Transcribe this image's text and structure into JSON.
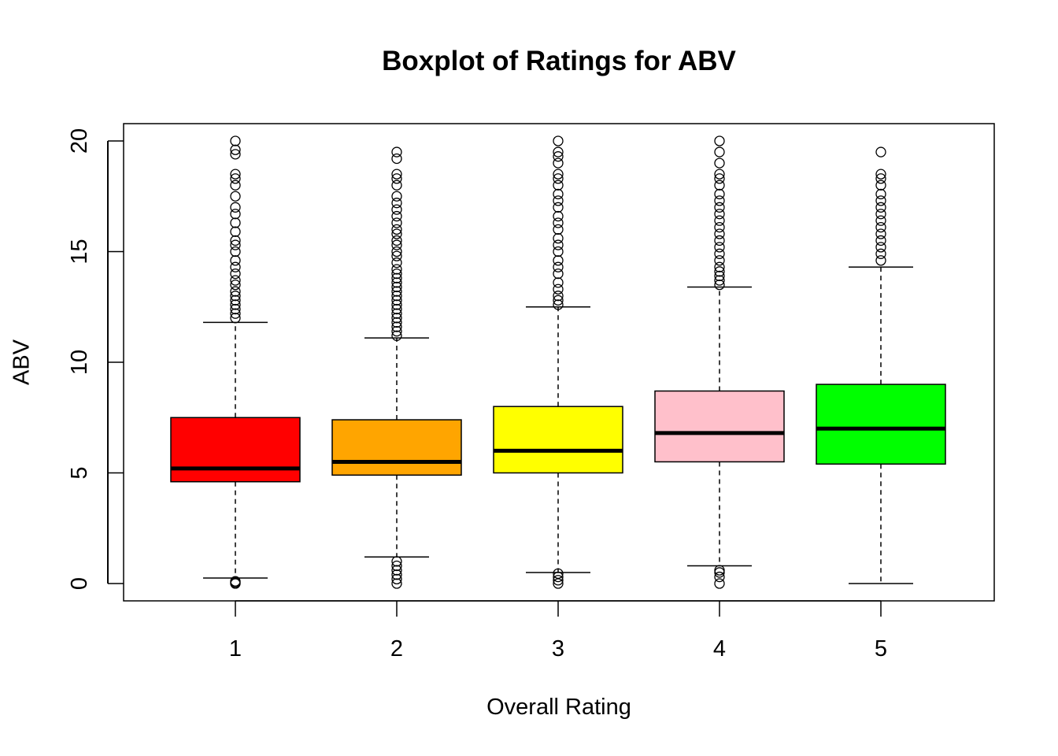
{
  "chart_data": {
    "type": "boxplot",
    "title": "Boxplot of Ratings for ABV",
    "xlabel": "Overall Rating",
    "ylabel": "ABV",
    "ylim": [
      -0.8,
      20.8
    ],
    "y_ticks": [
      0,
      5,
      10,
      15,
      20
    ],
    "categories": [
      "1",
      "2",
      "3",
      "4",
      "5"
    ],
    "grid": false,
    "boxes": [
      {
        "category": "1",
        "color": "#FF0000",
        "whisker_low": 0.25,
        "q1": 4.6,
        "median": 5.2,
        "q3": 7.5,
        "whisker_high": 11.8,
        "outliers": [
          0.0,
          0.05,
          0.1,
          12.0,
          12.2,
          12.4,
          12.6,
          12.8,
          13.0,
          13.2,
          13.5,
          13.7,
          14.0,
          14.3,
          14.6,
          15.0,
          15.3,
          15.5,
          15.9,
          16.3,
          16.7,
          17.0,
          17.5,
          18.0,
          18.3,
          18.5,
          19.4,
          19.6,
          20.0
        ]
      },
      {
        "category": "2",
        "color": "#FFA500",
        "whisker_low": 1.2,
        "q1": 4.9,
        "median": 5.5,
        "q3": 7.4,
        "whisker_high": 11.1,
        "outliers": [
          0.0,
          0.2,
          0.4,
          0.6,
          0.8,
          1.0,
          11.2,
          11.4,
          11.6,
          11.8,
          12.0,
          12.2,
          12.4,
          12.6,
          12.8,
          13.0,
          13.2,
          13.4,
          13.6,
          13.8,
          14.0,
          14.2,
          14.5,
          14.8,
          15.0,
          15.3,
          15.5,
          15.8,
          16.0,
          16.3,
          16.6,
          16.9,
          17.2,
          17.5,
          18.0,
          18.3,
          18.5,
          19.2,
          19.5
        ]
      },
      {
        "category": "3",
        "color": "#FFFF00",
        "whisker_low": 0.5,
        "q1": 5.0,
        "median": 6.0,
        "q3": 8.0,
        "whisker_high": 12.5,
        "outliers": [
          0.0,
          0.15,
          0.3,
          0.45,
          12.6,
          12.8,
          13.0,
          13.3,
          13.6,
          14.0,
          14.3,
          14.6,
          15.0,
          15.3,
          15.6,
          16.0,
          16.3,
          16.6,
          17.0,
          17.3,
          17.6,
          18.0,
          18.3,
          18.5,
          19.0,
          19.3,
          19.5,
          20.0
        ]
      },
      {
        "category": "4",
        "color": "#FFC0CB",
        "whisker_low": 0.8,
        "q1": 5.5,
        "median": 6.8,
        "q3": 8.7,
        "whisker_high": 13.4,
        "outliers": [
          0.0,
          0.3,
          0.5,
          0.6,
          13.5,
          13.7,
          13.9,
          14.1,
          14.3,
          14.6,
          14.9,
          15.2,
          15.5,
          15.8,
          16.1,
          16.4,
          16.7,
          17.0,
          17.3,
          17.6,
          18.0,
          18.3,
          18.5,
          19.0,
          19.5,
          20.0
        ]
      },
      {
        "category": "5",
        "color": "#00FF00",
        "whisker_low": 0.0,
        "q1": 5.4,
        "median": 7.0,
        "q3": 9.0,
        "whisker_high": 14.3,
        "outliers": [
          14.6,
          14.9,
          15.2,
          15.5,
          15.8,
          16.1,
          16.4,
          16.7,
          17.0,
          17.3,
          17.6,
          18.0,
          18.3,
          18.5,
          19.5
        ]
      }
    ]
  }
}
